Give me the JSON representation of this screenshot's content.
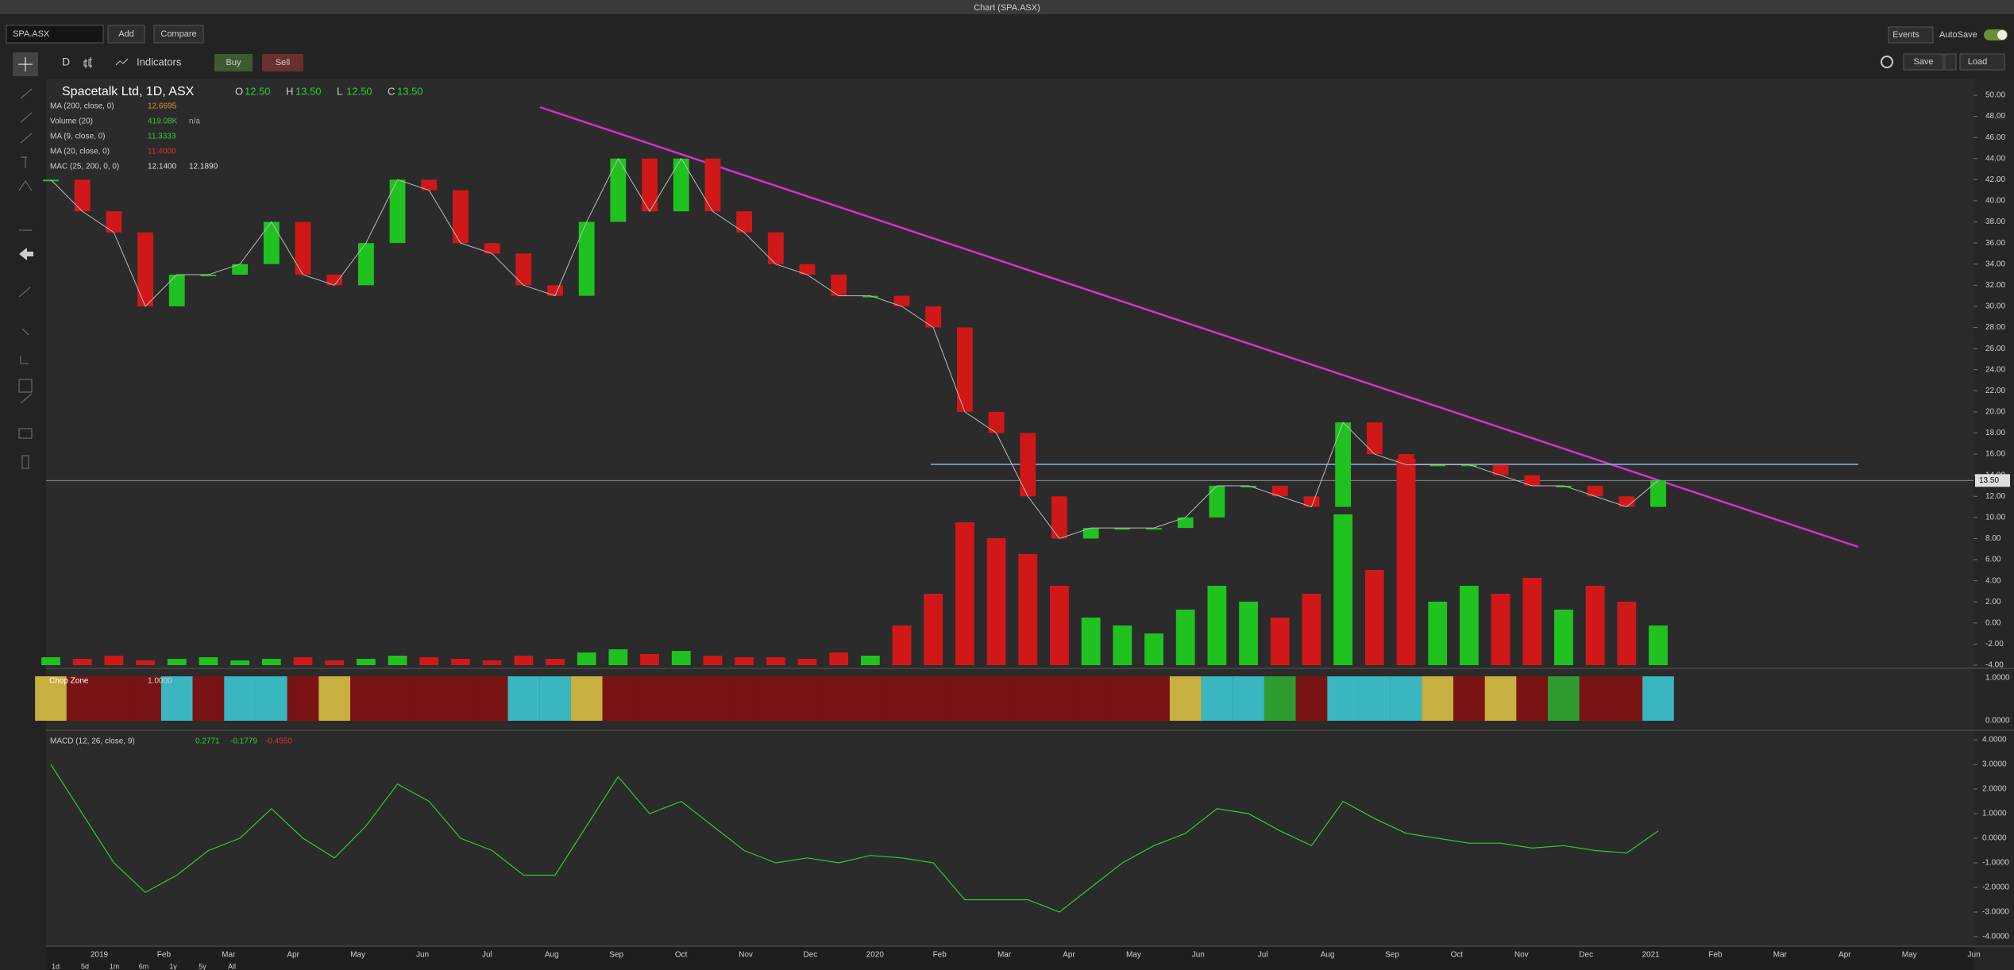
{
  "window_title": "Chart (SPA.ASX)",
  "toolbar": {
    "symbol": "SPA.ASX",
    "add": "Add",
    "compare": "Compare",
    "events": "Events",
    "autosave": "AutoSave",
    "interval": "D",
    "indicators": "Indicators",
    "buy": "Buy",
    "sell": "Sell",
    "save": "Save",
    "load": "Load"
  },
  "legend": {
    "title": "Spacetalk Ltd, 1D, ASX",
    "ohlc": [
      {
        "label": "O",
        "value": "12.50"
      },
      {
        "label": "H",
        "value": "13.50"
      },
      {
        "label": "L",
        "value": "12.50"
      },
      {
        "label": "C",
        "value": "13.50"
      }
    ],
    "indicators": [
      {
        "name": "MA (200, close, 0)",
        "values": [
          {
            "text": "12.6695",
            "color": "#e8902a"
          }
        ]
      },
      {
        "name": "Volume (20)",
        "values": [
          {
            "text": "419.08K",
            "color": "#2ecc2e"
          },
          {
            "text": "n/a",
            "color": "#aaaaaa"
          }
        ]
      },
      {
        "name": "MA (9, close, 0)",
        "values": [
          {
            "text": "11.3333",
            "color": "#2ecc2e"
          }
        ]
      },
      {
        "name": "MA (20, close, 0)",
        "values": [
          {
            "text": "11.4000",
            "color": "#e03030"
          }
        ]
      },
      {
        "name": "MAC (25, 200, 0, 0)",
        "values": [
          {
            "text": "12.1400",
            "color": "#dddddd"
          },
          {
            "text": "12.1890",
            "color": "#dddddd"
          }
        ]
      }
    ]
  },
  "price_axis": {
    "ylim": [
      -4,
      50
    ],
    "ticks": [
      {
        "value": 50,
        "label": "50.00"
      },
      {
        "value": 48,
        "label": "48.00"
      },
      {
        "value": 46,
        "label": "46.00"
      },
      {
        "value": 44,
        "label": "44.00"
      },
      {
        "value": 42,
        "label": "42.00"
      },
      {
        "value": 40,
        "label": "40.00"
      },
      {
        "value": 38,
        "label": "38.00"
      },
      {
        "value": 36,
        "label": "36.00"
      },
      {
        "value": 34,
        "label": "34.00"
      },
      {
        "value": 32,
        "label": "32.00"
      },
      {
        "value": 30,
        "label": "30.00"
      },
      {
        "value": 28,
        "label": "28.00"
      },
      {
        "value": 26,
        "label": "26.00"
      },
      {
        "value": 24,
        "label": "24.00"
      },
      {
        "value": 22,
        "label": "22.00"
      },
      {
        "value": 20,
        "label": "20.00"
      },
      {
        "value": 18,
        "label": "18.00"
      },
      {
        "value": 16,
        "label": "16.00"
      },
      {
        "value": 14,
        "label": "14.00"
      },
      {
        "value": 12,
        "label": "12.00"
      },
      {
        "value": 10,
        "label": "10.00"
      },
      {
        "value": 8,
        "label": "8.00"
      },
      {
        "value": 6,
        "label": "6.00"
      },
      {
        "value": 4,
        "label": "4.00"
      },
      {
        "value": 2,
        "label": "2.00"
      },
      {
        "value": 0,
        "label": "0.00"
      },
      {
        "value": -2,
        "label": "-2.00"
      },
      {
        "value": -4,
        "label": "-4.00"
      }
    ],
    "last": {
      "value": 13.5,
      "label": "13.50"
    }
  },
  "prices": [
    42,
    39,
    37,
    30,
    33,
    33,
    34,
    38,
    33,
    32,
    36,
    42,
    41,
    36,
    35,
    32,
    31,
    38,
    44,
    39,
    44,
    39,
    37,
    34,
    33,
    31,
    31,
    30,
    28,
    20,
    18,
    12,
    8,
    9,
    9,
    9,
    10,
    13,
    13,
    12,
    11,
    19,
    16,
    15,
    15,
    15,
    14,
    13,
    13,
    12,
    11,
    13.5
  ],
  "volume": [
    5,
    4,
    6,
    3,
    4,
    5,
    3,
    4,
    5,
    3,
    4,
    6,
    5,
    4,
    3,
    6,
    4,
    8,
    10,
    7,
    9,
    6,
    5,
    5,
    4,
    8,
    6,
    25,
    45,
    90,
    80,
    70,
    50,
    30,
    25,
    20,
    35,
    50,
    40,
    30,
    45,
    95,
    60,
    130,
    40,
    50,
    45,
    55,
    35,
    50,
    40,
    25
  ],
  "chop_zone": {
    "label": "Chop Zone",
    "value": "1.0000",
    "ticks": [
      "1.0000",
      "0.0000"
    ],
    "colors": [
      "#c8b040",
      "#7a1414",
      "#7a1414",
      "#7a1414",
      "#3ab6c0",
      "#7a1414",
      "#3ab6c0",
      "#3ab6c0",
      "#7a1414",
      "#c8b040",
      "#7a1414",
      "#7a1414",
      "#7a1414",
      "#7a1414",
      "#7a1414",
      "#3ab6c0",
      "#3ab6c0",
      "#c8b040",
      "#7a1414",
      "#7a1414",
      "#7a1414",
      "#7a1414",
      "#7a1414",
      "#7a1414",
      "#7a1414",
      "#7a1414",
      "#7a1414",
      "#7a1414",
      "#7a1414",
      "#7a1414",
      "#7a1414",
      "#7a1414",
      "#7a1414",
      "#7a1414",
      "#7a1414",
      "#7a1414",
      "#c8b040",
      "#3ab6c0",
      "#3ab6c0",
      "#2f9c2f",
      "#7a1414",
      "#3ab6c0",
      "#3ab6c0",
      "#3ab6c0",
      "#c8b040",
      "#7a1414",
      "#c8b040",
      "#7a1414",
      "#2f9c2f",
      "#7a1414",
      "#7a1414",
      "#3ab6c0"
    ]
  },
  "macd": {
    "label": "MACD (12, 26, close, 9)",
    "values": [
      {
        "text": "0.2771",
        "color": "#2ecc2e"
      },
      {
        "text": "-0.1779",
        "color": "#2ecc2e"
      },
      {
        "text": "-0.4550",
        "color": "#e03030"
      }
    ],
    "ylim": [
      -4,
      4
    ],
    "ticks": [
      {
        "value": 4,
        "label": "4.0000"
      },
      {
        "value": 3,
        "label": "3.0000"
      },
      {
        "value": 2,
        "label": "2.0000"
      },
      {
        "value": 1,
        "label": "1.0000"
      },
      {
        "value": 0,
        "label": "0.0000"
      },
      {
        "value": -1,
        "label": "-1.0000"
      },
      {
        "value": -2,
        "label": "-2.0000"
      },
      {
        "value": -3,
        "label": "-3.0000"
      },
      {
        "value": -4,
        "label": "-4.0000"
      }
    ],
    "line": [
      3,
      1,
      -1,
      -2.2,
      -1.5,
      -0.5,
      0,
      1.2,
      0,
      -0.8,
      0.5,
      2.2,
      1.5,
      0,
      -0.5,
      -1.5,
      -1.5,
      0.5,
      2.5,
      1,
      1.5,
      0.5,
      -0.5,
      -1,
      -0.8,
      -1,
      -0.7,
      -0.8,
      -1,
      -2.5,
      -2.5,
      -2.5,
      -3,
      -2,
      -1,
      -0.3,
      0.2,
      1.2,
      1,
      0.3,
      -0.3,
      1.5,
      0.8,
      0.2,
      0,
      -0.2,
      -0.2,
      -0.4,
      -0.3,
      -0.5,
      -0.6,
      0.3
    ]
  },
  "time_axis": [
    "2019",
    "Feb",
    "Mar",
    "Apr",
    "May",
    "Jun",
    "Jul",
    "Aug",
    "Sep",
    "Oct",
    "Nov",
    "Dec",
    "2020",
    "Feb",
    "Mar",
    "Apr",
    "May",
    "Jun",
    "Jul",
    "Aug",
    "Sep",
    "Oct",
    "Nov",
    "Dec",
    "2021",
    "Feb",
    "Mar",
    "Apr",
    "May",
    "Jun"
  ],
  "ranges": [
    "1d",
    "5d",
    "1m",
    "6m",
    "1y",
    "5y",
    "All"
  ]
}
